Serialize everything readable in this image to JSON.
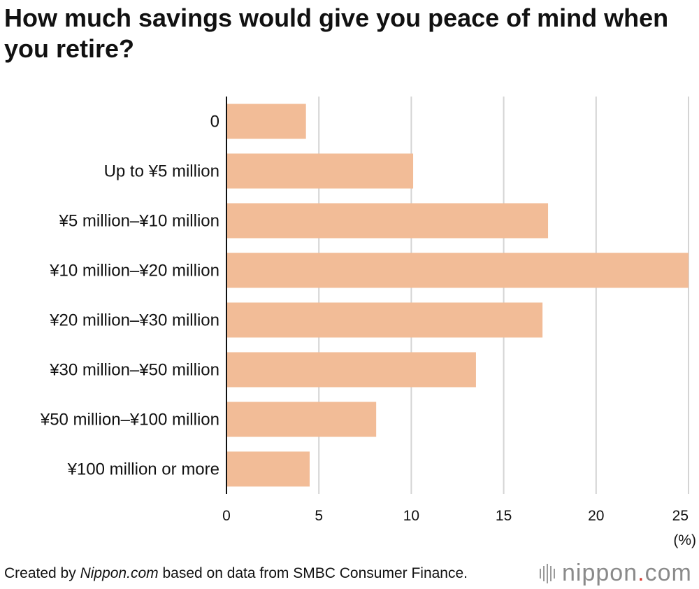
{
  "title": "How much savings would give you peace of mind when you retire?",
  "footer": {
    "prefix": "Created by ",
    "source_name": "Nippon.com",
    "suffix": " based on data from SMBC Consumer Finance."
  },
  "logo": {
    "name": "nippon",
    "dot": ".",
    "tld": "com"
  },
  "colors": {
    "bar": "#f2bc97",
    "grid": "#d4d4d4",
    "axis": "#111111"
  },
  "chart_data": {
    "type": "bar",
    "orientation": "horizontal",
    "title": "How much savings would give you peace of mind when you retire?",
    "categories": [
      "0",
      "Up to ¥5 million",
      "¥5 million–¥10 million",
      "¥10 million–¥20 million",
      "¥20 million–¥30 million",
      "¥30 million–¥50 million",
      "¥50 million–¥100 million",
      "¥100 million or more"
    ],
    "values": [
      4.3,
      10.1,
      17.4,
      25.0,
      17.1,
      13.5,
      8.1,
      4.5
    ],
    "xlim": [
      0,
      25
    ],
    "xticks": [
      "0",
      "5",
      "10",
      "15",
      "20",
      "25"
    ],
    "xlabel": "(%)",
    "ylabel": "",
    "grid": true
  }
}
